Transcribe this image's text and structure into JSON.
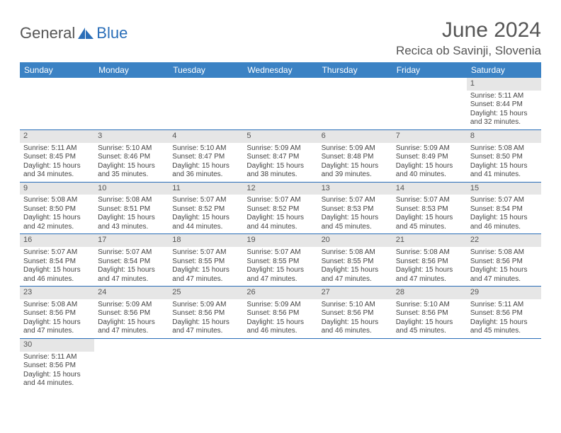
{
  "brand": {
    "name1": "General",
    "name2": "Blue"
  },
  "title": "June 2024",
  "location": "Recica ob Savinji, Slovenia",
  "colors": {
    "header_bg": "#3b82c4",
    "header_text": "#ffffff",
    "daynum_bg": "#e6e6e6",
    "cell_border": "#2a6eb8",
    "body_text": "#444444",
    "title_text": "#555555"
  },
  "dow": [
    "Sunday",
    "Monday",
    "Tuesday",
    "Wednesday",
    "Thursday",
    "Friday",
    "Saturday"
  ],
  "weeks": [
    [
      null,
      null,
      null,
      null,
      null,
      null,
      {
        "n": "1",
        "sunrise": "5:11 AM",
        "sunset": "8:44 PM",
        "daylight": "15 hours and 32 minutes."
      }
    ],
    [
      {
        "n": "2",
        "sunrise": "5:11 AM",
        "sunset": "8:45 PM",
        "daylight": "15 hours and 34 minutes."
      },
      {
        "n": "3",
        "sunrise": "5:10 AM",
        "sunset": "8:46 PM",
        "daylight": "15 hours and 35 minutes."
      },
      {
        "n": "4",
        "sunrise": "5:10 AM",
        "sunset": "8:47 PM",
        "daylight": "15 hours and 36 minutes."
      },
      {
        "n": "5",
        "sunrise": "5:09 AM",
        "sunset": "8:47 PM",
        "daylight": "15 hours and 38 minutes."
      },
      {
        "n": "6",
        "sunrise": "5:09 AM",
        "sunset": "8:48 PM",
        "daylight": "15 hours and 39 minutes."
      },
      {
        "n": "7",
        "sunrise": "5:09 AM",
        "sunset": "8:49 PM",
        "daylight": "15 hours and 40 minutes."
      },
      {
        "n": "8",
        "sunrise": "5:08 AM",
        "sunset": "8:50 PM",
        "daylight": "15 hours and 41 minutes."
      }
    ],
    [
      {
        "n": "9",
        "sunrise": "5:08 AM",
        "sunset": "8:50 PM",
        "daylight": "15 hours and 42 minutes."
      },
      {
        "n": "10",
        "sunrise": "5:08 AM",
        "sunset": "8:51 PM",
        "daylight": "15 hours and 43 minutes."
      },
      {
        "n": "11",
        "sunrise": "5:07 AM",
        "sunset": "8:52 PM",
        "daylight": "15 hours and 44 minutes."
      },
      {
        "n": "12",
        "sunrise": "5:07 AM",
        "sunset": "8:52 PM",
        "daylight": "15 hours and 44 minutes."
      },
      {
        "n": "13",
        "sunrise": "5:07 AM",
        "sunset": "8:53 PM",
        "daylight": "15 hours and 45 minutes."
      },
      {
        "n": "14",
        "sunrise": "5:07 AM",
        "sunset": "8:53 PM",
        "daylight": "15 hours and 45 minutes."
      },
      {
        "n": "15",
        "sunrise": "5:07 AM",
        "sunset": "8:54 PM",
        "daylight": "15 hours and 46 minutes."
      }
    ],
    [
      {
        "n": "16",
        "sunrise": "5:07 AM",
        "sunset": "8:54 PM",
        "daylight": "15 hours and 46 minutes."
      },
      {
        "n": "17",
        "sunrise": "5:07 AM",
        "sunset": "8:54 PM",
        "daylight": "15 hours and 47 minutes."
      },
      {
        "n": "18",
        "sunrise": "5:07 AM",
        "sunset": "8:55 PM",
        "daylight": "15 hours and 47 minutes."
      },
      {
        "n": "19",
        "sunrise": "5:07 AM",
        "sunset": "8:55 PM",
        "daylight": "15 hours and 47 minutes."
      },
      {
        "n": "20",
        "sunrise": "5:08 AM",
        "sunset": "8:55 PM",
        "daylight": "15 hours and 47 minutes."
      },
      {
        "n": "21",
        "sunrise": "5:08 AM",
        "sunset": "8:56 PM",
        "daylight": "15 hours and 47 minutes."
      },
      {
        "n": "22",
        "sunrise": "5:08 AM",
        "sunset": "8:56 PM",
        "daylight": "15 hours and 47 minutes."
      }
    ],
    [
      {
        "n": "23",
        "sunrise": "5:08 AM",
        "sunset": "8:56 PM",
        "daylight": "15 hours and 47 minutes."
      },
      {
        "n": "24",
        "sunrise": "5:09 AM",
        "sunset": "8:56 PM",
        "daylight": "15 hours and 47 minutes."
      },
      {
        "n": "25",
        "sunrise": "5:09 AM",
        "sunset": "8:56 PM",
        "daylight": "15 hours and 47 minutes."
      },
      {
        "n": "26",
        "sunrise": "5:09 AM",
        "sunset": "8:56 PM",
        "daylight": "15 hours and 46 minutes."
      },
      {
        "n": "27",
        "sunrise": "5:10 AM",
        "sunset": "8:56 PM",
        "daylight": "15 hours and 46 minutes."
      },
      {
        "n": "28",
        "sunrise": "5:10 AM",
        "sunset": "8:56 PM",
        "daylight": "15 hours and 45 minutes."
      },
      {
        "n": "29",
        "sunrise": "5:11 AM",
        "sunset": "8:56 PM",
        "daylight": "15 hours and 45 minutes."
      }
    ],
    [
      {
        "n": "30",
        "sunrise": "5:11 AM",
        "sunset": "8:56 PM",
        "daylight": "15 hours and 44 minutes."
      },
      null,
      null,
      null,
      null,
      null,
      null
    ]
  ],
  "labels": {
    "sunrise": "Sunrise: ",
    "sunset": "Sunset: ",
    "daylight": "Daylight: "
  }
}
